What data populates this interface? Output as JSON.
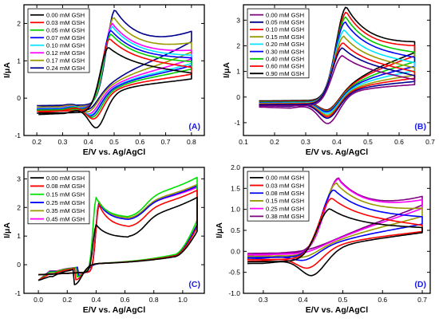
{
  "chart_data": [
    {
      "type": "line",
      "panel_label": "(A)",
      "xlabel": "E/V vs. Ag/AgCl",
      "ylabel": "I/μA",
      "xlim": [
        0.15,
        0.85
      ],
      "ylim": [
        -1,
        2.5
      ],
      "xticks": [
        0.2,
        0.3,
        0.4,
        0.5,
        0.6,
        0.7,
        0.8
      ],
      "yticks": [
        -1,
        0,
        1,
        2
      ],
      "x_tick_labels": [
        "0.2",
        "0.3",
        "0.4",
        "0.5",
        "0.6",
        "0.7",
        "0.8"
      ],
      "y_tick_labels": [
        "-1",
        "0",
        "1",
        "2"
      ],
      "legend_position": "top-left",
      "grid": false,
      "scan_range": [
        0.2,
        0.8
      ],
      "series": [
        {
          "name": "0.00 mM GSH",
          "color": "#000000",
          "ipa": 1.35,
          "epa": 0.48,
          "ipc": -0.85,
          "epc": 0.43,
          "i_start": -0.4,
          "i_end": 0.65,
          "e_end": 0.72
        },
        {
          "name": "0.03 mM GSH",
          "color": "#ff0000",
          "ipa": 1.58,
          "epa": 0.485,
          "ipc": -0.62,
          "epc": 0.42,
          "i_start": -0.35,
          "i_end": 0.8,
          "e_end": 0.75
        },
        {
          "name": "0.05 mM GSH",
          "color": "#00cc00",
          "ipa": 1.7,
          "epa": 0.49,
          "ipc": -0.58,
          "epc": 0.415,
          "i_start": -0.32,
          "i_end": 0.95,
          "e_end": 0.78
        },
        {
          "name": "0.07 mM GSH",
          "color": "#0000ff",
          "ipa": 1.8,
          "epa": 0.49,
          "ipc": -0.55,
          "epc": 0.41,
          "i_start": -0.3,
          "i_end": 1.05,
          "e_end": 0.8
        },
        {
          "name": "0.10 mM GSH",
          "color": "#00e5ff",
          "ipa": 1.9,
          "epa": 0.495,
          "ipc": -0.52,
          "epc": 0.41,
          "i_start": -0.28,
          "i_end": 1.12,
          "e_end": 0.8
        },
        {
          "name": "0.12 mM GSH",
          "color": "#ff00ff",
          "ipa": 1.98,
          "epa": 0.495,
          "ipc": -0.5,
          "epc": 0.405,
          "i_start": -0.27,
          "i_end": 1.25,
          "e_end": 0.8
        },
        {
          "name": "0.17 mM GSH",
          "color": "#999900",
          "ipa": 2.15,
          "epa": 0.5,
          "ipc": -0.45,
          "epc": 0.4,
          "i_start": -0.24,
          "i_end": 1.45,
          "e_end": 0.8
        },
        {
          "name": "0.24 mM GSH",
          "color": "#00008b",
          "ipa": 2.35,
          "epa": 0.505,
          "ipc": -0.4,
          "epc": 0.4,
          "i_start": -0.2,
          "i_end": 1.75,
          "e_end": 0.8
        }
      ]
    },
    {
      "type": "line",
      "panel_label": "(B)",
      "xlabel": "E/V vs. Ag/AgCl",
      "ylabel": "I/μA",
      "xlim": [
        0.1,
        0.7
      ],
      "ylim": [
        -1.5,
        3.6
      ],
      "xticks": [
        0.1,
        0.2,
        0.3,
        0.4,
        0.5,
        0.6,
        0.7
      ],
      "yticks": [
        -1,
        0,
        1,
        2,
        3
      ],
      "x_tick_labels": [
        "0.1",
        "0.2",
        "0.3",
        "0.4",
        "0.5",
        "0.6",
        "0.7"
      ],
      "y_tick_labels": [
        "-1",
        "0",
        "1",
        "2",
        "3"
      ],
      "legend_position": "top-left",
      "grid": false,
      "scan_range": [
        0.15,
        0.65
      ],
      "series": [
        {
          "name": "0.00 mM GSH",
          "color": "#800080",
          "ipa": 1.6,
          "epa": 0.42,
          "ipc": -1.1,
          "epc": 0.37,
          "i_start": -0.35,
          "i_end": 0.65,
          "e_end": 0.65
        },
        {
          "name": "0.05 mM GSH",
          "color": "#00008b",
          "ipa": 1.9,
          "epa": 0.42,
          "ipc": -0.9,
          "epc": 0.37,
          "i_start": -0.3,
          "i_end": 0.8,
          "e_end": 0.65
        },
        {
          "name": "0.10 mM GSH",
          "color": "#ff0000",
          "ipa": 2.1,
          "epa": 0.422,
          "ipc": -0.85,
          "epc": 0.37,
          "i_start": -0.28,
          "i_end": 0.95,
          "e_end": 0.65
        },
        {
          "name": "0.15 mM GSH",
          "color": "#999900",
          "ipa": 2.35,
          "epa": 0.424,
          "ipc": -0.8,
          "epc": 0.37,
          "i_start": -0.26,
          "i_end": 1.1,
          "e_end": 0.65
        },
        {
          "name": "0.20 mM GSH",
          "color": "#00e5ff",
          "ipa": 2.6,
          "epa": 0.426,
          "ipc": -0.75,
          "epc": 0.37,
          "i_start": -0.24,
          "i_end": 1.3,
          "e_end": 0.65
        },
        {
          "name": "0.30 mM GSH",
          "color": "#0000ff",
          "ipa": 2.9,
          "epa": 0.428,
          "ipc": -0.7,
          "epc": 0.37,
          "i_start": -0.22,
          "i_end": 1.5,
          "e_end": 0.65
        },
        {
          "name": "0.40 mM GSH",
          "color": "#00cc00",
          "ipa": 3.1,
          "epa": 0.43,
          "ipc": -0.68,
          "epc": 0.37,
          "i_start": -0.2,
          "i_end": 1.7,
          "e_end": 0.65
        },
        {
          "name": "0.60 mM GSH",
          "color": "#ff0000",
          "ipa": 3.3,
          "epa": 0.432,
          "ipc": -0.66,
          "epc": 0.37,
          "i_start": -0.18,
          "i_end": 1.95,
          "e_end": 0.65
        },
        {
          "name": "0.90 mM GSH",
          "color": "#000000",
          "ipa": 3.5,
          "epa": 0.432,
          "ipc": -0.65,
          "epc": 0.37,
          "i_start": -0.15,
          "i_end": 2.1,
          "e_end": 0.65
        }
      ]
    },
    {
      "type": "line",
      "panel_label": "(C)",
      "xlabel": "E/V vs. Ag/AgCl",
      "ylabel": "I/μA",
      "xlim": [
        -0.1,
        1.15
      ],
      "ylim": [
        -1,
        3.4
      ],
      "xticks": [
        0.0,
        0.2,
        0.4,
        0.6,
        0.8,
        1.0
      ],
      "yticks": [
        -1,
        0,
        1,
        2,
        3
      ],
      "x_tick_labels": [
        "0.0",
        "0.2",
        "0.4",
        "0.6",
        "0.8",
        "1.0"
      ],
      "y_tick_labels": [
        "-1",
        "0",
        "1",
        "2",
        "3"
      ],
      "legend_position": "top-left",
      "grid": false,
      "scan_range": [
        0.0,
        1.1
      ],
      "series": [
        {
          "name": "0.00 mM GSH",
          "color": "#000000",
          "ipa": 1.4,
          "epa": 0.4,
          "ipc": -0.72,
          "epc": 0.25,
          "i_valley": 0.95,
          "i_end": 2.35
        },
        {
          "name": "0.08 mM GSH",
          "color": "#ff0000",
          "ipa": 2.1,
          "epa": 0.42,
          "ipc": -0.55,
          "epc": 0.26,
          "i_valley": 1.3,
          "i_end": 2.6
        },
        {
          "name": "0.15 mM GSH",
          "color": "#00e000",
          "ipa": 2.35,
          "epa": 0.4,
          "ipc": -0.45,
          "epc": 0.27,
          "i_valley": 1.65,
          "i_end": 3.05
        },
        {
          "name": "0.25 mM GSH",
          "color": "#0000ff",
          "ipa": 2.15,
          "epa": 0.42,
          "ipc": -0.42,
          "epc": 0.28,
          "i_valley": 1.55,
          "i_end": 2.75
        },
        {
          "name": "0.35 mM GSH",
          "color": "#999900",
          "ipa": 2.2,
          "epa": 0.42,
          "ipc": -0.4,
          "epc": 0.28,
          "i_valley": 1.6,
          "i_end": 2.8
        },
        {
          "name": "0.45 mM GSH",
          "color": "#ff00ff",
          "ipa": 2.2,
          "epa": 0.42,
          "ipc": -0.38,
          "epc": 0.28,
          "i_valley": 1.6,
          "i_end": 2.7
        }
      ]
    },
    {
      "type": "line",
      "panel_label": "(D)",
      "xlabel": "E/V vs. Ag/AgCl",
      "ylabel": "I/μA",
      "xlim": [
        0.25,
        0.72
      ],
      "ylim": [
        -1.0,
        2.0
      ],
      "xticks": [
        0.3,
        0.4,
        0.5,
        0.6,
        0.7
      ],
      "yticks": [
        -1.0,
        -0.5,
        0.0,
        0.5,
        1.0,
        1.5,
        2.0
      ],
      "x_tick_labels": [
        "0.3",
        "0.4",
        "0.5",
        "0.6",
        "0.7"
      ],
      "y_tick_labels": [
        "-1.0",
        "-0.5",
        "0.0",
        "0.5",
        "1.0",
        "1.5",
        "2.0"
      ],
      "legend_position": "top-left",
      "grid": false,
      "scan_range": [
        0.26,
        0.7
      ],
      "series": [
        {
          "name": "0.00 mM GSH",
          "color": "#000000",
          "ipa": 1.0,
          "epa": 0.47,
          "ipc": -0.62,
          "epc": 0.42,
          "i_start": -0.25,
          "i_end": 0.55,
          "e_end": 0.65
        },
        {
          "name": "0.03 mM GSH",
          "color": "#ff0000",
          "ipa": 1.25,
          "epa": 0.475,
          "ipc": -0.45,
          "epc": 0.41,
          "i_start": -0.2,
          "i_end": 0.6,
          "e_end": 0.65
        },
        {
          "name": "0.08 mM GSH",
          "color": "#0000ff",
          "ipa": 1.45,
          "epa": 0.48,
          "ipc": -0.27,
          "epc": 0.4,
          "i_start": -0.15,
          "i_end": 0.8,
          "e_end": 0.7
        },
        {
          "name": "0.15 mM GSH",
          "color": "#999900",
          "ipa": 1.6,
          "epa": 0.485,
          "ipc": -0.2,
          "epc": 0.4,
          "i_start": -0.12,
          "i_end": 1.0,
          "e_end": 0.7
        },
        {
          "name": "0.25 mM GSH",
          "color": "#ff00ff",
          "ipa": 1.7,
          "epa": 0.49,
          "ipc": -0.1,
          "epc": 0.4,
          "i_start": -0.08,
          "i_end": 1.2,
          "e_end": 0.7
        },
        {
          "name": "0.38 mM GSH",
          "color": "#800080",
          "ipa": 1.72,
          "epa": 0.49,
          "ipc": -0.05,
          "epc": 0.4,
          "i_start": -0.05,
          "i_end": 1.28,
          "e_end": 0.7
        }
      ]
    }
  ]
}
